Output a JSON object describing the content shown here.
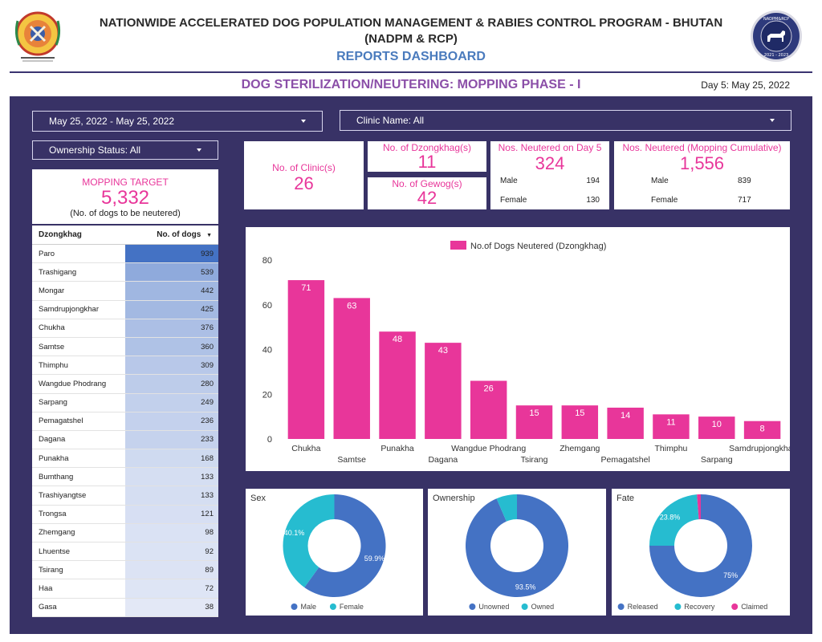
{
  "header": {
    "title_line1": "NATIONWIDE ACCELERATED DOG POPULATION MANAGEMENT & RABIES CONTROL PROGRAM - BHUTAN",
    "title_line2": "(NADPM & RCP)",
    "subtitle": "REPORTS DASHBOARD",
    "phase_title": "DOG STERILIZATION/NEUTERING: MOPPING PHASE - I",
    "day_label": "Day 5: May 25, 2022",
    "seal_top_text": "NADPM&RCP",
    "seal_bottom_text": "2021 - 2023"
  },
  "filters": {
    "date_range": "May 25, 2022 - May 25, 2022",
    "clinic": "Clinic Name: All",
    "ownership": "Ownership Status: All"
  },
  "mopping_target": {
    "label": "MOPPING TARGET",
    "value": "5,332",
    "note": "(No. of dogs to be neutered)"
  },
  "kpis": {
    "clinics": {
      "label": "No. of Clinic(s)",
      "value": "26"
    },
    "dzongkhags": {
      "label": "No. of Dzongkhag(s)",
      "value": "11"
    },
    "gewogs": {
      "label": "No. of Gewog(s)",
      "value": "42"
    },
    "day5": {
      "label": "Nos. Neutered on Day 5",
      "value": "324",
      "male_label": "Male",
      "male": "194",
      "female_label": "Female",
      "female": "130"
    },
    "cumulative": {
      "label": "Nos. Neutered (Mopping Cumulative)",
      "value": "1,556",
      "male_label": "Male",
      "male": "839",
      "female_label": "Female",
      "female": "717"
    }
  },
  "table": {
    "col1": "Dzongkhag",
    "col2": "No. of dogs",
    "rows": [
      {
        "name": "Paro",
        "value": 939
      },
      {
        "name": "Trashigang",
        "value": 539
      },
      {
        "name": "Mongar",
        "value": 442
      },
      {
        "name": "Samdrupjongkhar",
        "value": 425
      },
      {
        "name": "Chukha",
        "value": 376
      },
      {
        "name": "Samtse",
        "value": 360
      },
      {
        "name": "Thimphu",
        "value": 309
      },
      {
        "name": "Wangdue Phodrang",
        "value": 280
      },
      {
        "name": "Sarpang",
        "value": 249
      },
      {
        "name": "Pemagatshel",
        "value": 236
      },
      {
        "name": "Dagana",
        "value": 233
      },
      {
        "name": "Punakha",
        "value": 168
      },
      {
        "name": "Bumthang",
        "value": 133
      },
      {
        "name": "Trashiyangtse",
        "value": 133
      },
      {
        "name": "Trongsa",
        "value": 121
      },
      {
        "name": "Zhemgang",
        "value": 98
      },
      {
        "name": "Lhuentse",
        "value": 92
      },
      {
        "name": "Tsirang",
        "value": 89
      },
      {
        "name": "Haa",
        "value": 72
      },
      {
        "name": "Gasa",
        "value": 38
      }
    ]
  },
  "colors": {
    "frame": "#383266",
    "pink": "#e8369a",
    "blue": "#4472c4",
    "teal": "#26bcd0",
    "header_blue": "#4a7bbd",
    "purple": "#8b4fa8"
  },
  "chart_data": [
    {
      "type": "bar",
      "series": [
        {
          "name": "No.of Dogs Neutered (Dzongkhag)",
          "values": [
            71,
            63,
            48,
            43,
            26,
            15,
            15,
            14,
            11,
            10,
            8
          ]
        }
      ],
      "categories": [
        "Chukha",
        "Samtse",
        "Punakha",
        "Dagana",
        "Wangdue Phodrang",
        "Tsirang",
        "Zhemgang",
        "Pemagatshel",
        "Thimphu",
        "Sarpang",
        "Samdrupjongkhar"
      ],
      "yticks": [
        0,
        20,
        40,
        60,
        80
      ],
      "ylim": [
        0,
        80
      ],
      "legend": "top",
      "data_labels": true
    },
    {
      "type": "pie",
      "title": "Sex",
      "labels": [
        "Male",
        "Female"
      ],
      "values": [
        59.9,
        40.1
      ],
      "display": [
        "59.9%",
        "40.1%"
      ],
      "colors": [
        "#4472c4",
        "#26bcd0"
      ],
      "donut": true
    },
    {
      "type": "pie",
      "title": "Ownership",
      "labels": [
        "Unowned",
        "Owned"
      ],
      "values": [
        93.5,
        6.5
      ],
      "display": [
        "93.5%",
        ""
      ],
      "colors": [
        "#4472c4",
        "#26bcd0"
      ],
      "donut": true
    },
    {
      "type": "pie",
      "title": "Fate",
      "labels": [
        "Released",
        "Recovery",
        "Claimed"
      ],
      "values": [
        75,
        23.8,
        1.2
      ],
      "display": [
        "75%",
        "23.8%",
        ""
      ],
      "colors": [
        "#4472c4",
        "#26bcd0",
        "#e8369a"
      ],
      "donut": true
    }
  ]
}
